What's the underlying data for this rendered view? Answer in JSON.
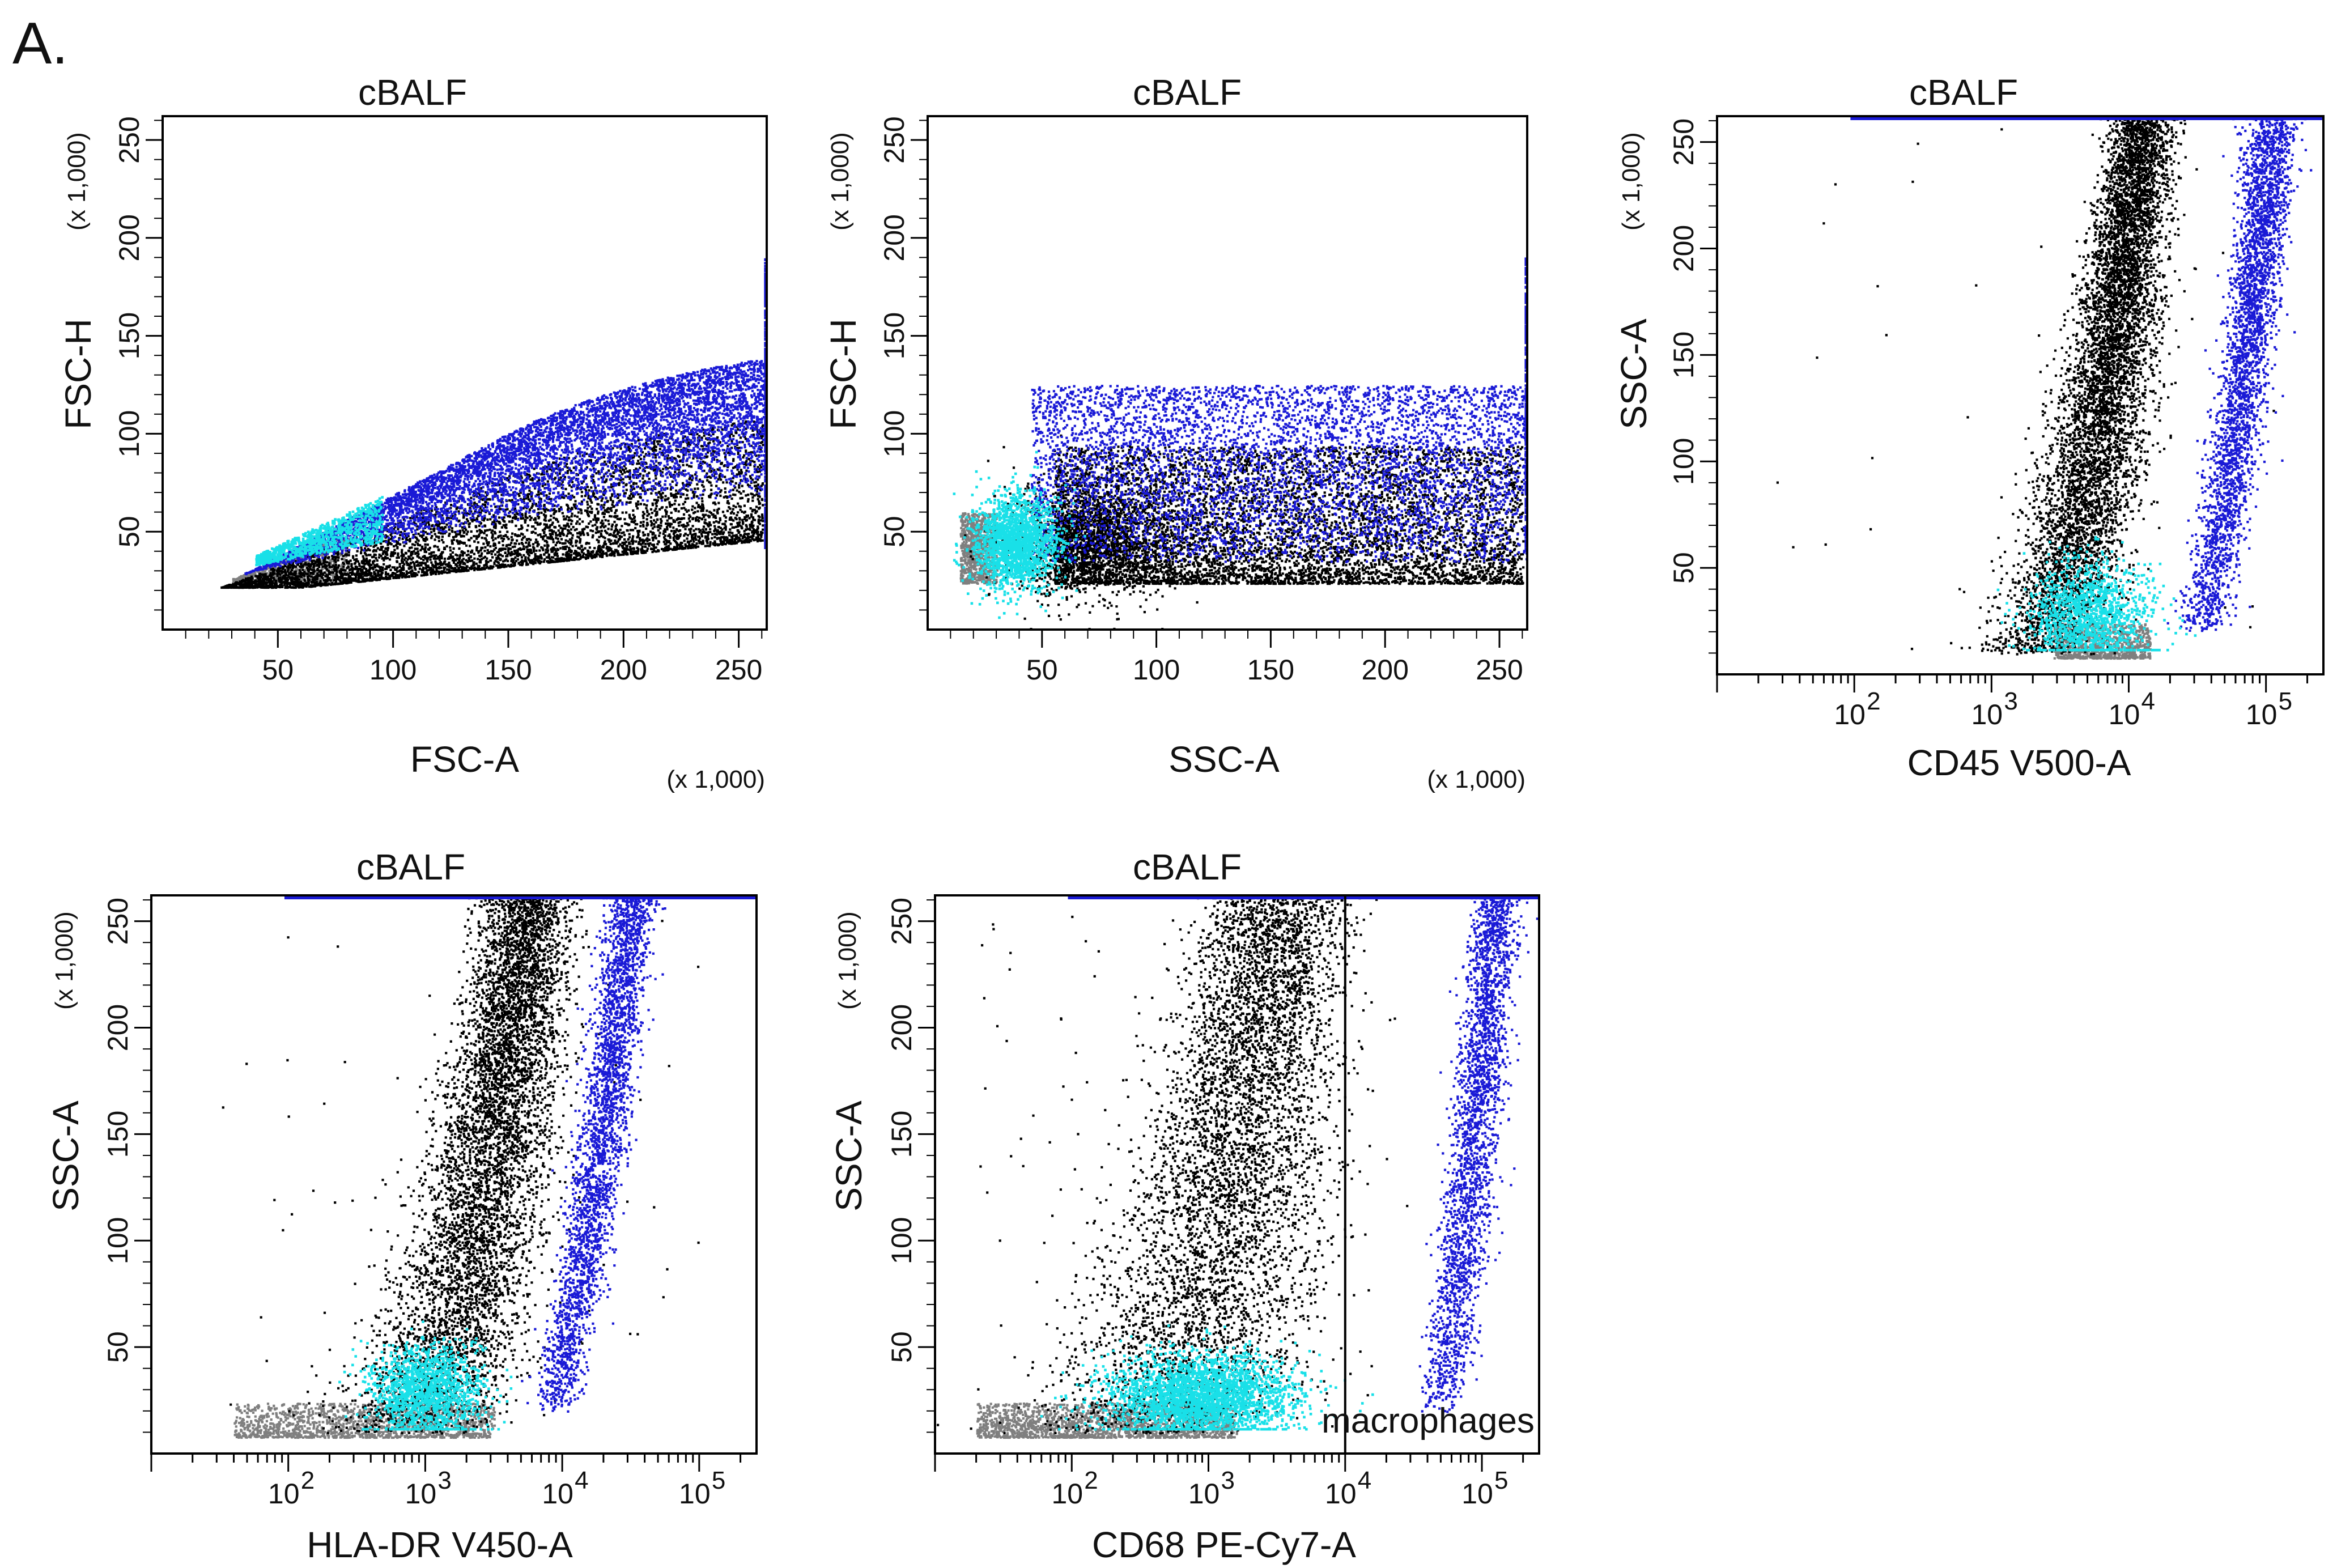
{
  "figure": {
    "panel_letter": "A."
  },
  "chart_data": [
    {
      "id": "p1",
      "type": "scatter",
      "title": "cBALF",
      "xlabel": "FSC-A",
      "ylabel": "FSC-H",
      "x_scale": "linear",
      "xlim": [
        0,
        262.144
      ],
      "ylim": [
        0,
        262.144
      ],
      "x_multiplier": "(x 1,000)",
      "y_multiplier": "(x 1,000)",
      "x_ticks": [
        50,
        100,
        150,
        200,
        250
      ],
      "y_ticks": [
        50,
        100,
        150,
        200,
        250
      ],
      "populations": [
        {
          "name": "gray",
          "color": "#7f7f7f"
        },
        {
          "name": "black",
          "color": "#000000"
        },
        {
          "name": "cyan",
          "color": "#19e0e8"
        },
        {
          "name": "blue",
          "color": "#1a1ad6"
        }
      ]
    },
    {
      "id": "p2",
      "type": "scatter",
      "title": "cBALF",
      "xlabel": "SSC-A",
      "ylabel": "FSC-H",
      "x_scale": "linear",
      "xlim": [
        0,
        262.144
      ],
      "ylim": [
        0,
        262.144
      ],
      "x_multiplier": "(x 1,000)",
      "y_multiplier": "(x 1,000)",
      "x_ticks": [
        50,
        100,
        150,
        200,
        250
      ],
      "y_ticks": [
        50,
        100,
        150,
        200,
        250
      ],
      "populations": [
        {
          "name": "gray",
          "color": "#7f7f7f"
        },
        {
          "name": "black",
          "color": "#000000"
        },
        {
          "name": "cyan",
          "color": "#19e0e8"
        },
        {
          "name": "blue",
          "color": "#1a1ad6"
        }
      ]
    },
    {
      "id": "p3",
      "type": "scatter",
      "title": "cBALF",
      "xlabel": "CD45 V500-A",
      "ylabel": "SSC-A",
      "x_scale": "log",
      "xlim": [
        10,
        262144
      ],
      "ylim": [
        0,
        262.144
      ],
      "x_multiplier": "",
      "y_multiplier": "(x 1,000)",
      "x_ticks": [
        {
          "value": 100,
          "base": "10",
          "exp": "2"
        },
        {
          "value": 1000,
          "base": "10",
          "exp": "3"
        },
        {
          "value": 10000,
          "base": "10",
          "exp": "4"
        },
        {
          "value": 100000,
          "base": "10",
          "exp": "5"
        }
      ],
      "y_ticks": [
        50,
        100,
        150,
        200,
        250
      ],
      "populations": [
        {
          "name": "gray",
          "color": "#7f7f7f"
        },
        {
          "name": "black",
          "color": "#000000"
        },
        {
          "name": "cyan",
          "color": "#19e0e8"
        },
        {
          "name": "blue",
          "color": "#1a1ad6"
        }
      ]
    },
    {
      "id": "p4",
      "type": "scatter",
      "title": "cBALF",
      "xlabel": "HLA-DR V450-A",
      "ylabel": "SSC-A",
      "x_scale": "log",
      "xlim": [
        10,
        262144
      ],
      "ylim": [
        0,
        262.144
      ],
      "x_multiplier": "",
      "y_multiplier": "(x 1,000)",
      "x_ticks": [
        {
          "value": 100,
          "base": "10",
          "exp": "2"
        },
        {
          "value": 1000,
          "base": "10",
          "exp": "3"
        },
        {
          "value": 10000,
          "base": "10",
          "exp": "4"
        },
        {
          "value": 100000,
          "base": "10",
          "exp": "5"
        }
      ],
      "y_ticks": [
        50,
        100,
        150,
        200,
        250
      ],
      "populations": [
        {
          "name": "gray",
          "color": "#7f7f7f"
        },
        {
          "name": "black",
          "color": "#000000"
        },
        {
          "name": "cyan",
          "color": "#19e0e8"
        },
        {
          "name": "blue",
          "color": "#1a1ad6"
        }
      ]
    },
    {
      "id": "p5",
      "type": "scatter",
      "title": "cBALF",
      "xlabel": "CD68 PE-Cy7-A",
      "ylabel": "SSC-A",
      "x_scale": "log",
      "xlim": [
        10,
        262144
      ],
      "ylim": [
        0,
        262.144
      ],
      "x_multiplier": "",
      "y_multiplier": "(x 1,000)",
      "x_ticks": [
        {
          "value": 100,
          "base": "10",
          "exp": "2"
        },
        {
          "value": 1000,
          "base": "10",
          "exp": "3"
        },
        {
          "value": 10000,
          "base": "10",
          "exp": "4"
        },
        {
          "value": 100000,
          "base": "10",
          "exp": "5"
        }
      ],
      "y_ticks": [
        50,
        100,
        150,
        200,
        250
      ],
      "gate": {
        "label": "macrophages",
        "x_min": 10000,
        "x_max": 262144
      },
      "populations": [
        {
          "name": "gray",
          "color": "#7f7f7f"
        },
        {
          "name": "black",
          "color": "#000000"
        },
        {
          "name": "cyan",
          "color": "#19e0e8"
        },
        {
          "name": "blue",
          "color": "#1a1ad6"
        }
      ]
    }
  ]
}
